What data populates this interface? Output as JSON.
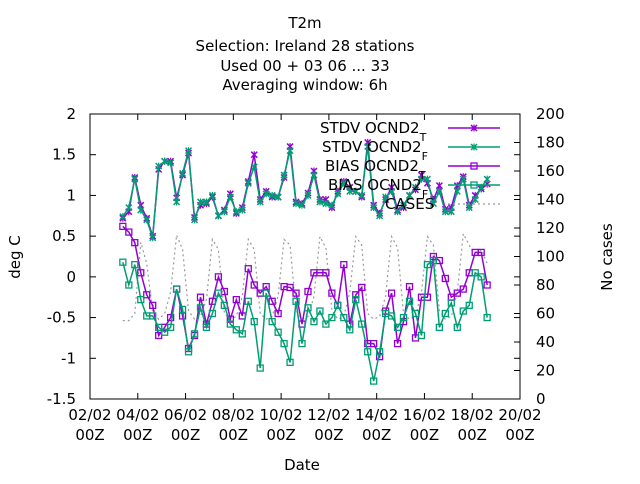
{
  "title_lines": [
    "T2m",
    "Selection: Ireland      28 stations",
    "Used  00 + 03 06 ... 33",
    "Averaging window:  6h"
  ],
  "chart_data": {
    "type": "line",
    "xlabel": "Date",
    "ylabel": "deg C",
    "y2label": "No cases",
    "x_ticks": [
      "02/02 00Z",
      "04/02 00Z",
      "06/02 00Z",
      "08/02 00Z",
      "10/02 00Z",
      "12/02 00Z",
      "14/02 00Z",
      "16/02 00Z",
      "18/02 00Z",
      "20/02 00Z"
    ],
    "x_range_days": [
      2,
      20
    ],
    "ylim": [
      -1.5,
      2
    ],
    "y_ticks": [
      -1.5,
      -1,
      -0.5,
      0,
      0.5,
      1,
      1.5,
      2
    ],
    "y2lim": [
      0,
      200
    ],
    "y2_ticks": [
      0,
      20,
      40,
      60,
      80,
      100,
      120,
      140,
      160,
      180,
      200
    ],
    "grid": false,
    "legend_position": "top-right",
    "x_day": [
      3.375,
      3.625,
      3.875,
      4.125,
      4.375,
      4.625,
      4.875,
      5.125,
      5.375,
      5.625,
      5.875,
      6.125,
      6.375,
      6.625,
      6.875,
      7.125,
      7.375,
      7.625,
      7.875,
      8.125,
      8.375,
      8.625,
      8.875,
      9.125,
      9.375,
      9.625,
      9.875,
      10.125,
      10.375,
      10.625,
      10.875,
      11.125,
      11.375,
      11.625,
      11.875,
      12.125,
      12.375,
      12.625,
      12.875,
      13.125,
      13.375,
      13.625,
      13.875,
      14.125,
      14.375,
      14.625,
      14.875,
      15.125,
      15.375,
      15.625,
      15.875,
      16.125,
      16.375,
      16.625,
      16.875,
      17.125,
      17.375,
      17.625,
      17.875,
      18.125,
      18.375,
      18.625
    ],
    "series": [
      {
        "name": "STDV OCND2_T",
        "color": "#9400d3",
        "marker": "x",
        "values": [
          0.72,
          0.8,
          1.22,
          0.88,
          0.72,
          0.5,
          1.32,
          1.42,
          1.42,
          0.97,
          1.25,
          1.52,
          0.73,
          0.88,
          0.9,
          0.98,
          0.75,
          0.82,
          1.02,
          0.78,
          0.85,
          1.17,
          1.5,
          0.95,
          1.05,
          0.98,
          0.98,
          1.22,
          1.6,
          0.92,
          0.9,
          1.03,
          1.3,
          0.95,
          0.95,
          0.85,
          1.05,
          1.17,
          1.1,
          1.05,
          0.98,
          1.65,
          0.88,
          0.78,
          0.95,
          1.1,
          0.82,
          0.85,
          1.0,
          1.07,
          1.25,
          1.15,
          0.95,
          1.12,
          0.83,
          0.85,
          1.12,
          1.23,
          0.88,
          1.0,
          1.08,
          1.14
        ]
      },
      {
        "name": "STDV OCND2_F",
        "color": "#009e73",
        "marker": "x",
        "values": [
          0.74,
          0.85,
          1.2,
          0.82,
          0.7,
          0.48,
          1.36,
          1.42,
          1.4,
          0.92,
          1.27,
          1.55,
          0.7,
          0.92,
          0.92,
          1.0,
          0.75,
          0.8,
          0.98,
          0.8,
          0.82,
          1.15,
          1.35,
          0.92,
          1.02,
          1.0,
          0.98,
          1.25,
          1.55,
          0.9,
          0.88,
          1.0,
          1.25,
          0.92,
          0.9,
          0.88,
          1.02,
          1.15,
          1.05,
          1.05,
          1.0,
          1.6,
          0.85,
          0.75,
          0.98,
          1.05,
          0.8,
          0.88,
          1.0,
          1.1,
          1.2,
          1.2,
          0.9,
          1.05,
          0.8,
          0.8,
          1.05,
          1.2,
          0.85,
          0.95,
          1.1,
          1.2
        ]
      },
      {
        "name": "BIAS OCND2_T",
        "color": "#9400d3",
        "marker": "square",
        "values": [
          0.62,
          0.55,
          0.42,
          0.05,
          -0.22,
          -0.35,
          -0.72,
          -0.62,
          -0.5,
          -0.15,
          -0.48,
          -0.88,
          -0.72,
          -0.25,
          -0.58,
          -0.3,
          0.0,
          -0.18,
          -0.52,
          -0.28,
          -0.48,
          0.1,
          -0.1,
          -0.2,
          -0.12,
          -0.3,
          -0.45,
          -0.12,
          -0.13,
          -0.2,
          -0.58,
          -0.18,
          0.05,
          0.05,
          0.05,
          -0.2,
          -0.35,
          0.15,
          -0.58,
          -0.22,
          -0.13,
          -0.82,
          -0.82,
          -0.98,
          -0.42,
          -0.2,
          -0.82,
          -0.55,
          -0.12,
          -0.75,
          -0.25,
          -0.25,
          0.25,
          0.2,
          -0.02,
          -0.25,
          -0.2,
          -0.15,
          0.05,
          0.3,
          0.3,
          -0.1
        ]
      },
      {
        "name": "BIAS OCND2_F",
        "color": "#009e73",
        "marker": "square",
        "values": [
          0.18,
          -0.1,
          0.15,
          -0.28,
          -0.48,
          -0.48,
          -0.62,
          -0.68,
          -0.62,
          -0.15,
          -0.4,
          -0.92,
          -0.7,
          -0.38,
          -0.62,
          -0.45,
          -0.2,
          -0.35,
          -0.58,
          -0.65,
          -0.7,
          -0.3,
          -0.55,
          -1.12,
          -0.2,
          -0.55,
          -0.68,
          -0.82,
          -1.05,
          -0.3,
          -0.82,
          -0.38,
          -0.55,
          -0.42,
          -0.58,
          -0.5,
          -0.35,
          -0.5,
          -0.65,
          -0.28,
          -0.58,
          -0.92,
          -1.28,
          -0.92,
          -0.45,
          -0.48,
          -0.62,
          -0.5,
          -0.3,
          -0.45,
          -0.72,
          0.15,
          0.2,
          -0.62,
          -0.45,
          -0.32,
          -0.62,
          -0.42,
          -0.35,
          0.05,
          0.0,
          -0.5
        ]
      },
      {
        "name": "CASES",
        "color": "#999999",
        "marker": "none",
        "dashed": true,
        "y_axis": "right",
        "values": [
          55,
          55,
          60,
          110,
          95,
          62,
          56,
          60,
          75,
          115,
          105,
          62,
          56,
          58,
          70,
          112,
          105,
          60,
          56,
          58,
          72,
          112,
          105,
          60,
          56,
          58,
          72,
          112,
          108,
          62,
          56,
          58,
          72,
          114,
          106,
          62,
          56,
          58,
          75,
          114,
          108,
          60,
          56,
          58,
          72,
          114,
          106,
          60,
          56,
          58,
          75,
          114,
          108,
          62,
          56,
          58,
          75,
          116,
          108,
          100,
          105,
          95
        ]
      }
    ]
  }
}
